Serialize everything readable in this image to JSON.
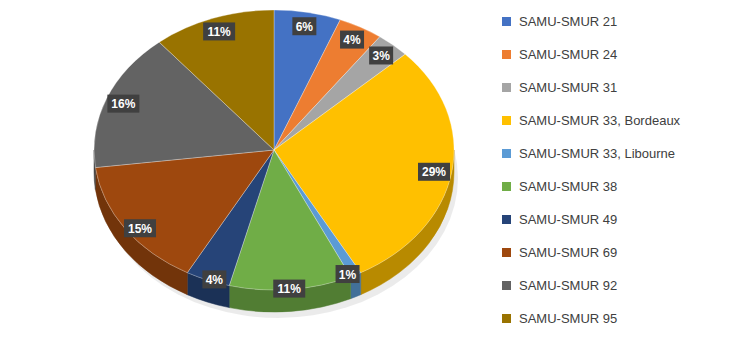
{
  "chart_data": {
    "type": "pie",
    "categories": [
      "SAMU-SMUR 21",
      "SAMU-SMUR 24",
      "SAMU-SMUR 31",
      "SAMU-SMUR 33, Bordeaux",
      "SAMU-SMUR 33, Libourne",
      "SAMU-SMUR 38",
      "SAMU-SMUR 49",
      "SAMU-SMUR 69",
      "SAMU-SMUR 92",
      "SAMU-SMUR 95"
    ],
    "values": [
      6,
      4,
      3,
      29,
      1,
      11,
      4,
      15,
      16,
      11
    ],
    "value_labels": [
      "6%",
      "4%",
      "3%",
      "29%",
      "1%",
      "11%",
      "4%",
      "15%",
      "16%",
      "11%"
    ],
    "colors": [
      "#4472c4",
      "#ed7d31",
      "#a5a5a5",
      "#ffc000",
      "#5b9bd5",
      "#70ad47",
      "#264478",
      "#9e480e",
      "#636363",
      "#997300"
    ],
    "data_labels": true,
    "legend": "right"
  }
}
